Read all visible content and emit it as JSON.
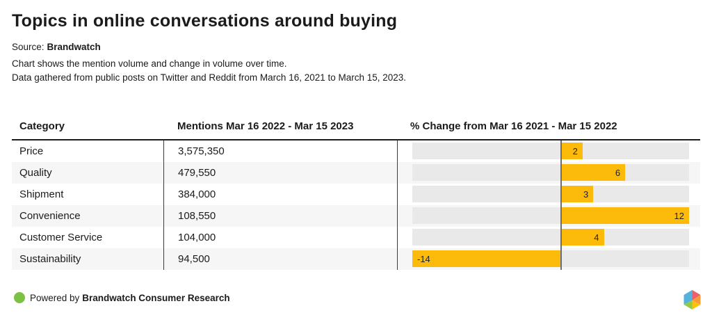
{
  "header": {
    "title": "Topics in online conversations around buying",
    "source_label": "Source:",
    "source_name": "Brandwatch",
    "description_lines": [
      "Chart shows the mention volume and change in volume over time.",
      "Data gathered from public posts on Twitter and Reddit from March 16, 2021 to March 15, 2023."
    ]
  },
  "table": {
    "columns": [
      "Category",
      "Mentions Mar 16 2022 - Mar 15 2023",
      "% Change from Mar 16 2021 - Mar 15 2022"
    ]
  },
  "chart_data": {
    "type": "bar",
    "orientation": "horizontal",
    "title": "Topics in online conversations around buying",
    "categories": [
      "Price",
      "Quality",
      "Shipment",
      "Convenience",
      "Customer Service",
      "Sustainability"
    ],
    "series": [
      {
        "name": "Mentions Mar 16 2022 - Mar 15 2023",
        "values": [
          3575350,
          479550,
          384000,
          108550,
          104000,
          94500
        ]
      },
      {
        "name": "% Change from Mar 16 2021 - Mar 15 2022",
        "values": [
          2,
          6,
          3,
          12,
          4,
          -14
        ]
      }
    ],
    "xlim": [
      -14,
      12
    ],
    "value_labels": "inside-end",
    "legend": "none",
    "grid": "off"
  },
  "rows": [
    {
      "category": "Price",
      "mentions": "3,575,350",
      "change": 2,
      "change_label": "2"
    },
    {
      "category": "Quality",
      "mentions": "479,550",
      "change": 6,
      "change_label": "6"
    },
    {
      "category": "Shipment",
      "mentions": "384,000",
      "change": 3,
      "change_label": "3"
    },
    {
      "category": "Convenience",
      "mentions": "108,550",
      "change": 12,
      "change_label": "12"
    },
    {
      "category": "Customer Service",
      "mentions": "104,000",
      "change": 4,
      "change_label": "4"
    },
    {
      "category": "Sustainability",
      "mentions": "94,500",
      "change": -14,
      "change_label": "-14"
    }
  ],
  "footer": {
    "powered_by": "Powered by",
    "brand": "Brandwatch Consumer Research"
  },
  "colors": {
    "bar": "#fcbb0b",
    "bar_track": "#e9e9e9",
    "alt_row": "#f6f6f6",
    "zero_line": "#6e6e6e",
    "green_dot": "#7cc142",
    "text": "#1b1b1b",
    "logo_blue": "#57b1dd",
    "logo_red": "#f0606a",
    "logo_orange": "#f79b37",
    "logo_yellow": "#fdc00e",
    "logo_green": "#97ca41"
  }
}
